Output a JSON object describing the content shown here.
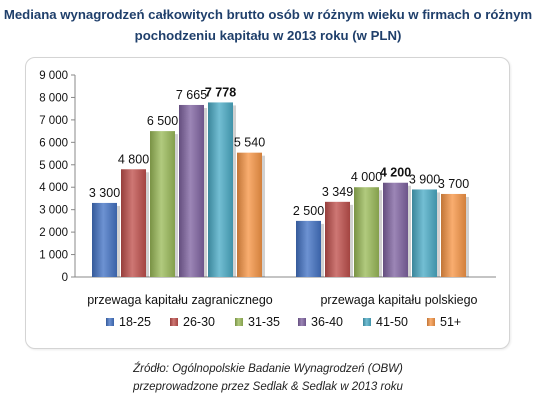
{
  "title_line1": "Mediana wynagrodzeń całkowitych brutto osób w różnym wieku w firmach o różnym",
  "title_line2": "pochodzeniu kapitału w 2013 roku (w PLN)",
  "source_line1": "Źródło: Ogólnopolskie Badanie Wynagrodzeń (OBW)",
  "source_line2": "przeprowadzone  przez Sedlak & Sedlak w 2013 roku",
  "chart_data": {
    "type": "bar",
    "categories": [
      "przewaga kapitału zagranicznego",
      "przewaga kapitału polskiego"
    ],
    "series": [
      {
        "name": "18-25",
        "values": [
          3300,
          2500
        ],
        "color": "#4473c5"
      },
      {
        "name": "26-30",
        "values": [
          4800,
          3349
        ],
        "color": "#c0504d"
      },
      {
        "name": "31-35",
        "values": [
          6500,
          4000
        ],
        "color": "#9bbb59"
      },
      {
        "name": "36-40",
        "values": [
          7665,
          4200
        ],
        "color": "#8064a2"
      },
      {
        "name": "41-50",
        "values": [
          7778,
          3900
        ],
        "color": "#4bacc6"
      },
      {
        "name": "51+",
        "values": [
          5540,
          3700
        ],
        "color": "#f79646"
      }
    ],
    "data_labels": [
      [
        "3 300",
        "2 500"
      ],
      [
        "4 800",
        "3 349"
      ],
      [
        "6 500",
        "4 000"
      ],
      [
        "7 665",
        "4 200"
      ],
      [
        "7 778",
        "3 900"
      ],
      [
        "5 540",
        "3 700"
      ]
    ],
    "bold_labels": [
      [
        4,
        0
      ],
      [
        3,
        1
      ]
    ],
    "y_ticks": [
      "0",
      "1 000",
      "2 000",
      "3 000",
      "4 000",
      "5 000",
      "6 000",
      "7 000",
      "8 000",
      "9 000"
    ],
    "ylim": [
      0,
      9000
    ],
    "grid": false,
    "legend_position": "bottom"
  }
}
